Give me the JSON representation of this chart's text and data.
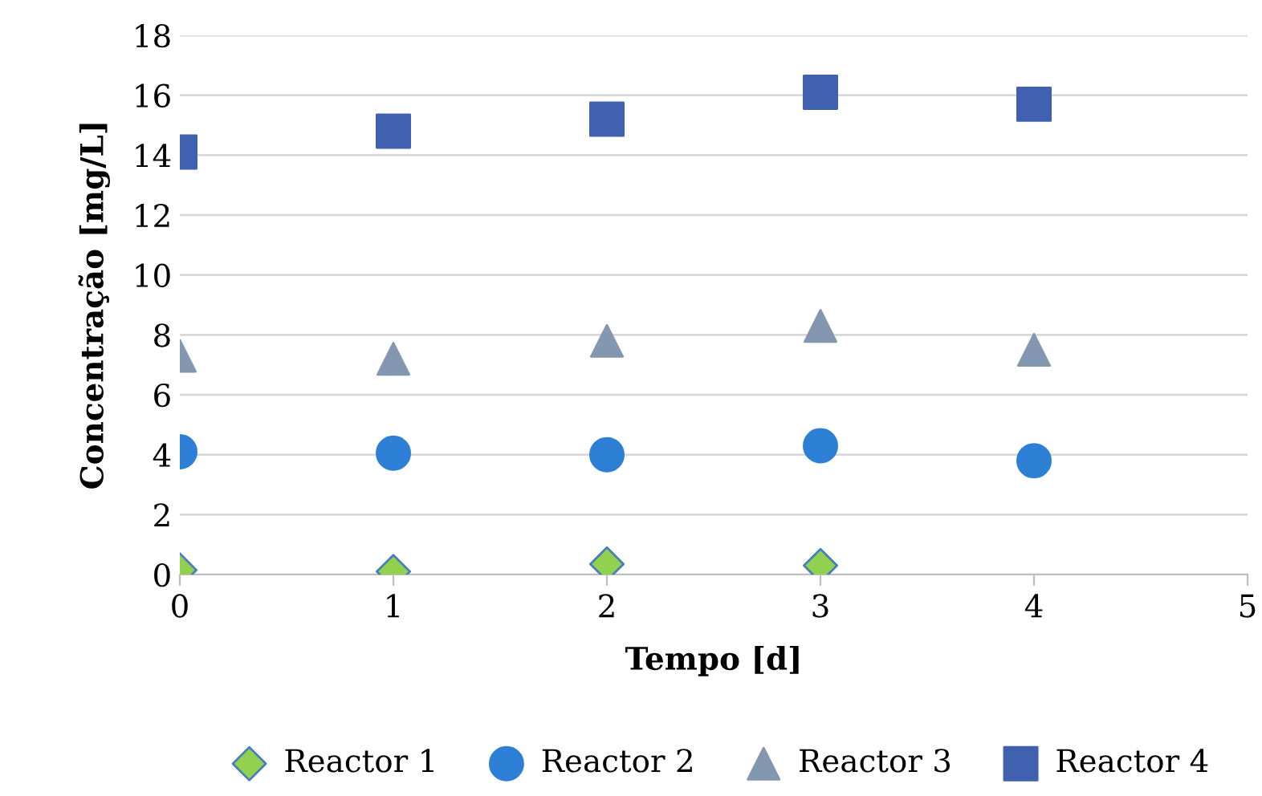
{
  "chart_data": {
    "type": "scatter",
    "xlabel": "Tempo [d]",
    "ylabel": "Concentração [mg/L]",
    "xlim": [
      0,
      5
    ],
    "xticks": [
      0,
      1,
      2,
      3,
      4,
      5
    ],
    "ylim": [
      0,
      18
    ],
    "yticks": [
      0,
      2,
      4,
      6,
      8,
      10,
      12,
      14,
      16,
      18
    ],
    "grid": "y",
    "legend": "bottom",
    "series": [
      {
        "name": "Reactor 1",
        "color": "#92d050",
        "marker": "diamond",
        "x": [
          0,
          1,
          2,
          3
        ],
        "values": [
          0.15,
          0.1,
          0.35,
          0.3
        ]
      },
      {
        "name": "Reactor 2",
        "color": "#2e7fd6",
        "marker": "circle",
        "x": [
          0,
          1,
          2,
          3,
          4
        ],
        "values": [
          4.1,
          4.05,
          4.0,
          4.3,
          3.8
        ]
      },
      {
        "name": "Reactor 3",
        "color": "#8497b0",
        "marker": "triangle",
        "x": [
          0,
          1,
          2,
          3,
          4
        ],
        "values": [
          7.3,
          7.2,
          7.8,
          8.3,
          7.5
        ]
      },
      {
        "name": "Reactor 4",
        "color": "#4060b0",
        "marker": "square",
        "x": [
          0,
          1,
          2,
          3,
          4
        ],
        "values": [
          14.1,
          14.8,
          15.2,
          16.1,
          15.7
        ]
      }
    ]
  }
}
